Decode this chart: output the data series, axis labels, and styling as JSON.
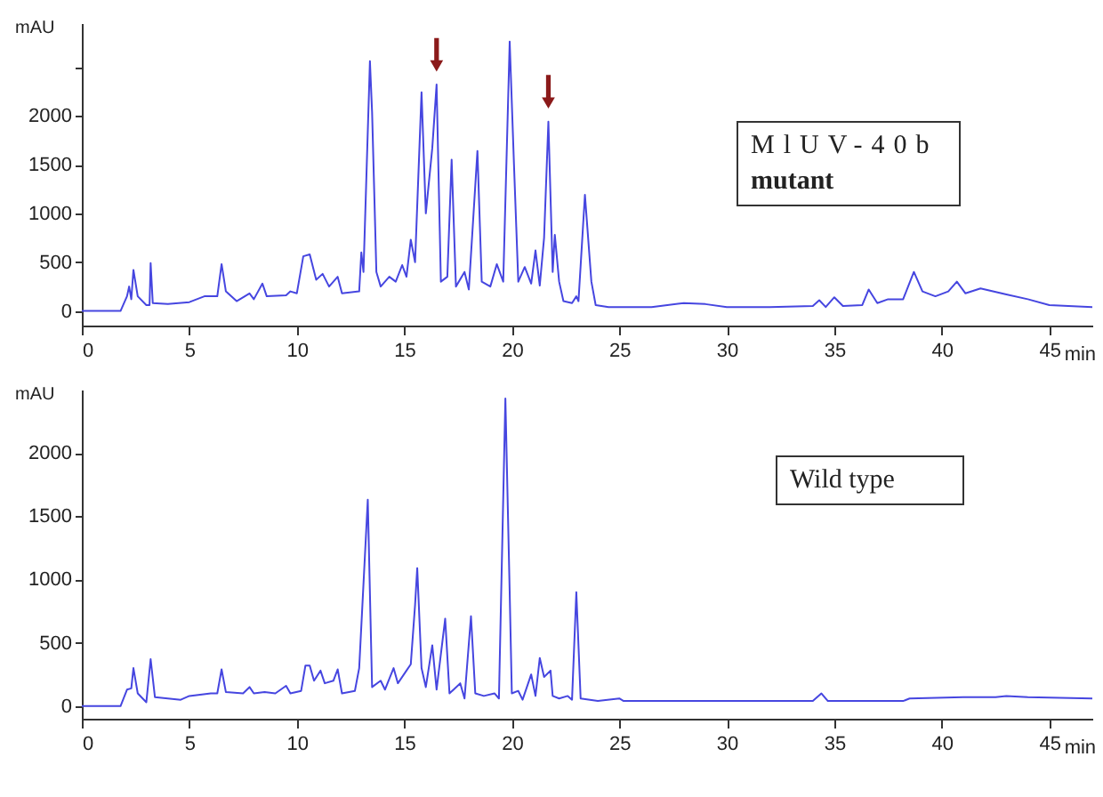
{
  "chart_data": [
    {
      "type": "line",
      "xlabel": "min",
      "ylabel": "mAU",
      "annotations": [
        "MlUV-40b",
        "mutant"
      ],
      "x": [
        0,
        1.8,
        2.1,
        2.2,
        2.3,
        2.4,
        2.6,
        3.0,
        3.15,
        3.2,
        3.3,
        4,
        5,
        5.7,
        6.3,
        6.5,
        6.7,
        7.2,
        7.8,
        8.0,
        8.4,
        8.6,
        9.5,
        9.7,
        10.0,
        10.3,
        10.6,
        10.9,
        11.2,
        11.5,
        11.9,
        12.1,
        12.9,
        13.0,
        13.1,
        13.4,
        13.5,
        13.7,
        13.9,
        14.3,
        14.6,
        14.9,
        15.1,
        15.3,
        15.5,
        15.8,
        16.0,
        16.3,
        16.5,
        16.7,
        17.0,
        17.2,
        17.4,
        17.8,
        18.0,
        18.4,
        18.6,
        19.0,
        19.3,
        19.6,
        19.9,
        20.1,
        20.3,
        20.6,
        20.9,
        21.1,
        21.3,
        21.5,
        21.7,
        21.9,
        22.0,
        22.2,
        22.4,
        22.8,
        23.0,
        23.1,
        23.4,
        23.7,
        23.9,
        24.5,
        26.5,
        28,
        29,
        30,
        32,
        34,
        34.3,
        34.6,
        35,
        35.4,
        36.3,
        36.6,
        37,
        37.5,
        38.2,
        38.7,
        39.1,
        39.7,
        40.3,
        40.7,
        41.1,
        41.8,
        43,
        44,
        45,
        47
      ],
      "series": [
        {
          "color": "#4646e0",
          "values": [
            0,
            0,
            150,
            250,
            120,
            420,
            150,
            60,
            60,
            490,
            80,
            70,
            90,
            150,
            150,
            480,
            200,
            100,
            180,
            120,
            280,
            150,
            160,
            200,
            180,
            560,
            580,
            320,
            380,
            250,
            350,
            180,
            200,
            600,
            400,
            2560,
            2040,
            400,
            250,
            350,
            300,
            470,
            350,
            730,
            500,
            2240,
            1000,
            1670,
            2320,
            300,
            350,
            1550,
            250,
            400,
            220,
            1640,
            300,
            250,
            480,
            300,
            2760,
            1500,
            300,
            450,
            280,
            620,
            260,
            750,
            1940,
            400,
            780,
            300,
            100,
            80,
            150,
            100,
            1190,
            300,
            60,
            40,
            40,
            80,
            70,
            40,
            40,
            50,
            110,
            40,
            140,
            50,
            60,
            220,
            80,
            120,
            120,
            400,
            200,
            150,
            200,
            300,
            180,
            230,
            170,
            120,
            60,
            40
          ]
        }
      ],
      "xlim": [
        0,
        47
      ],
      "ylim": [
        -150,
        2950
      ],
      "xticks": [
        0,
        5,
        10,
        15,
        20,
        25,
        30,
        35,
        40,
        45
      ],
      "yticks": [
        0,
        500,
        1000,
        1500,
        2000,
        {
          "value": 2500,
          "label": null
        }
      ],
      "grid": false
    },
    {
      "type": "line",
      "xlabel": "min",
      "ylabel": "mAU",
      "annotations": [
        "Wild type"
      ],
      "x": [
        0,
        1.8,
        2.1,
        2.3,
        2.4,
        2.6,
        3.0,
        3.2,
        3.4,
        4,
        4.6,
        5,
        6,
        6.3,
        6.5,
        6.7,
        7.5,
        7.8,
        8,
        8.5,
        9.0,
        9.5,
        9.7,
        10.2,
        10.4,
        10.6,
        10.8,
        11.1,
        11.3,
        11.7,
        11.9,
        12.1,
        12.7,
        12.9,
        13.3,
        13.5,
        13.9,
        14.1,
        14.5,
        14.7,
        15.1,
        15.3,
        15.5,
        15.6,
        15.8,
        16.0,
        16.3,
        16.5,
        16.9,
        17.1,
        17.6,
        17.8,
        18.1,
        18.3,
        18.7,
        19.2,
        19.4,
        19.7,
        19.9,
        20.0,
        20.3,
        20.5,
        20.9,
        21.1,
        21.3,
        21.5,
        21.8,
        21.9,
        22.2,
        22.6,
        22.8,
        23.0,
        23.2,
        24,
        25,
        25.2,
        34,
        34.4,
        34.7,
        38.2,
        38.5,
        41,
        42.5,
        43,
        44,
        47
      ],
      "series": [
        {
          "color": "#4646e0",
          "values": [
            0,
            0,
            130,
            140,
            300,
            100,
            30,
            370,
            70,
            60,
            50,
            80,
            100,
            100,
            290,
            110,
            100,
            150,
            100,
            110,
            100,
            160,
            100,
            120,
            320,
            320,
            200,
            280,
            180,
            200,
            290,
            100,
            120,
            300,
            1630,
            150,
            200,
            130,
            300,
            180,
            280,
            330,
            800,
            1090,
            300,
            150,
            480,
            130,
            690,
            100,
            180,
            60,
            710,
            100,
            80,
            100,
            60,
            2430,
            900,
            100,
            120,
            50,
            250,
            80,
            380,
            230,
            280,
            80,
            60,
            80,
            50,
            900,
            60,
            40,
            60,
            40,
            40,
            100,
            40,
            40,
            60,
            70,
            70,
            80,
            70,
            60
          ]
        }
      ],
      "xlim": [
        0,
        47
      ],
      "ylim": [
        -100,
        2500
      ],
      "xticks": [
        0,
        5,
        10,
        15,
        20,
        25,
        30,
        35,
        40,
        45
      ],
      "yticks": [
        0,
        500,
        1000,
        1500,
        2000
      ],
      "grid": false
    }
  ]
}
